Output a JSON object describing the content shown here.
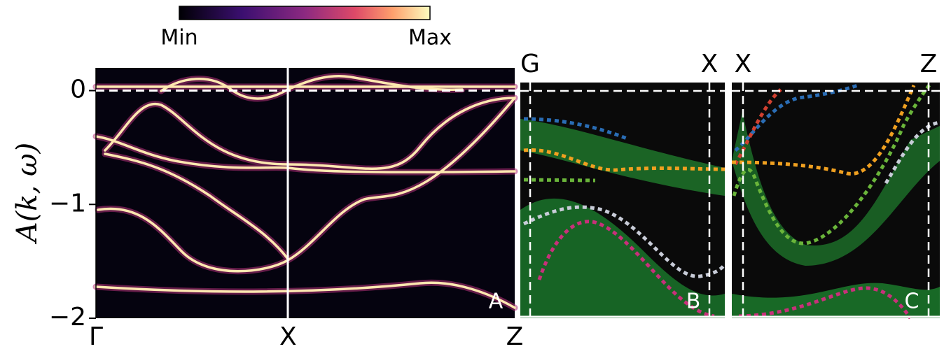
{
  "chart_data": [
    {
      "type": "heatmap",
      "ylabel": "A(k, ω)",
      "ylim": [
        -2,
        0.2
      ],
      "yticks": [
        {
          "value": 0,
          "label": "0"
        },
        {
          "value": -1,
          "label": "−1"
        },
        {
          "value": -2,
          "label": "−2"
        }
      ],
      "xlim": [
        0,
        2.18
      ],
      "xticks": [
        {
          "value": 0,
          "label": "Γ"
        },
        {
          "value": 1,
          "label": "X"
        },
        {
          "value": 2.18,
          "label": "Z"
        }
      ],
      "reference_line": 0,
      "panel_label": "A",
      "colorbar": {
        "min_label": "Min",
        "max_label": "Max"
      }
    },
    {
      "type": "heatmap",
      "categories": [
        "G",
        "X"
      ],
      "panel_label": "B"
    },
    {
      "type": "heatmap",
      "categories": [
        "X",
        "Z"
      ],
      "panel_label": "C"
    }
  ]
}
